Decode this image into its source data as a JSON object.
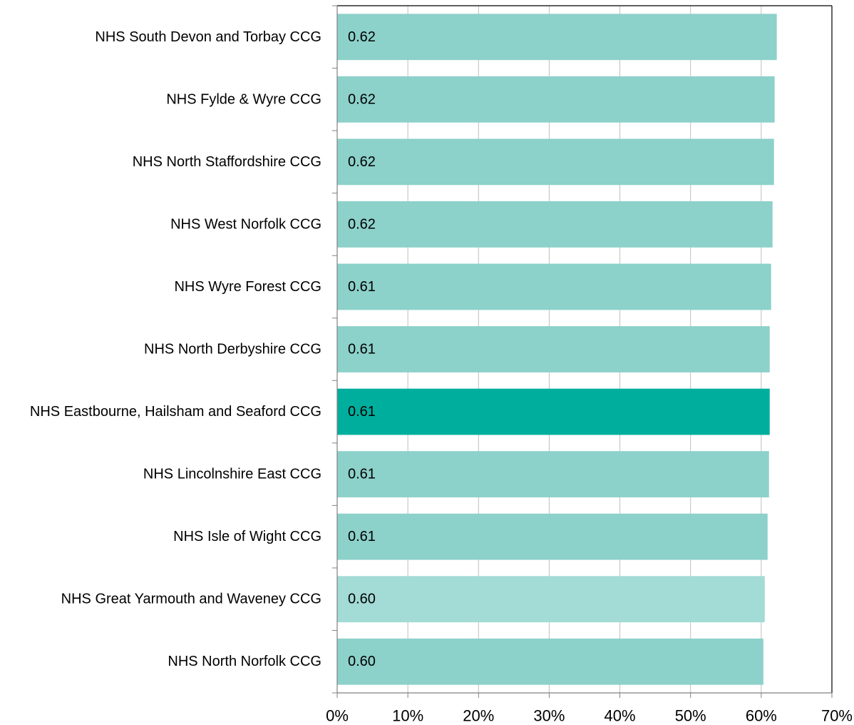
{
  "chart_data": {
    "type": "bar",
    "orientation": "horizontal",
    "title": "",
    "xlabel": "",
    "ylabel": "",
    "xlim": [
      0,
      70
    ],
    "x_ticks": [
      "0%",
      "10%",
      "20%",
      "30%",
      "40%",
      "50%",
      "60%",
      "70%"
    ],
    "grid": "vertical gridlines",
    "legend": "none",
    "categories": [
      "NHS South Devon and Torbay CCG",
      "NHS Fylde & Wyre CCG",
      "NHS North Staffordshire CCG",
      "NHS West Norfolk CCG",
      "NHS Wyre Forest CCG",
      "NHS North Derbyshire CCG",
      "NHS Eastbourne, Hailsham and Seaford CCG",
      "NHS Lincolnshire East CCG",
      "NHS Isle of Wight CCG",
      "NHS Great Yarmouth and Waveney CCG",
      "NHS North Norfolk CCG"
    ],
    "values": [
      62.2,
      61.9,
      61.8,
      61.6,
      61.4,
      61.2,
      61.2,
      61.1,
      60.9,
      60.5,
      60.3
    ],
    "data_labels": [
      "0.62",
      "0.62",
      "0.62",
      "0.62",
      "0.61",
      "0.61",
      "0.61",
      "0.61",
      "0.61",
      "0.60",
      "0.60"
    ],
    "bar_colors": [
      "#8cd1ca",
      "#8cd1ca",
      "#8cd1ca",
      "#8cd1ca",
      "#8cd1ca",
      "#8cd1ca",
      "#00ae9e",
      "#8cd1ca",
      "#8cd1ca",
      "#a3dbd6",
      "#8cd1ca"
    ]
  }
}
